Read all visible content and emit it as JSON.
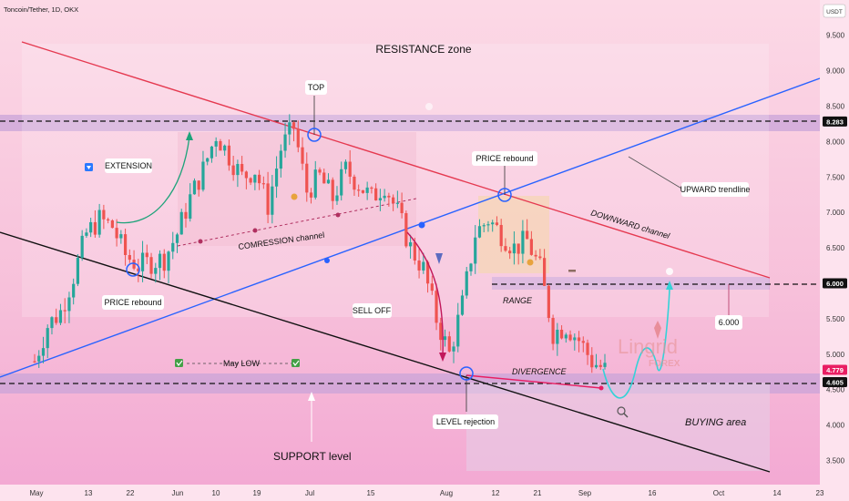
{
  "header": {
    "title": "Toncoin/Tether, 1D, OKX"
  },
  "currency_badge": "USDT",
  "chart_data": {
    "type": "candlestick",
    "symbol": "Toncoin/Tether, 1D, OKX",
    "ylim": [
      3.3,
      9.8
    ],
    "y_ticks": [
      "9.500",
      "9.000",
      "8.500",
      "8.000",
      "7.500",
      "7.000",
      "6.500",
      "5.500",
      "5.000",
      "4.500",
      "4.000",
      "3.500"
    ],
    "x_ticks": [
      "May",
      "13",
      "22",
      "Jun",
      "10",
      "19",
      "Jul",
      "15",
      "Aug",
      "12",
      "21",
      "Sep",
      "16",
      "Oct",
      "14",
      "23"
    ],
    "price_labels": [
      {
        "text": "8.283",
        "value": 8.283,
        "color": "#111111"
      },
      {
        "text": "6.000",
        "value": 6.0,
        "color": "#111111"
      },
      {
        "text": "4.779",
        "value": 4.779,
        "color": "#e91e63"
      },
      {
        "text": "4.605",
        "value": 4.605,
        "color": "#111111"
      }
    ],
    "candles_close_path": [
      4.9,
      5.4,
      5.6,
      6.1,
      6.7,
      6.9,
      6.8,
      6.4,
      6.25,
      6.3,
      6.35,
      6.7,
      7.2,
      7.6,
      8.1,
      7.8,
      7.5,
      7.6,
      7.1,
      7.9,
      8.2,
      7.3,
      7.5,
      7.2,
      7.6,
      7.4,
      7.2,
      7.4,
      7.0,
      6.5,
      6.2,
      5.5,
      5.0,
      5.7,
      6.7,
      6.9,
      6.7,
      6.5,
      6.6,
      6.2,
      5.3,
      5.4,
      5.2,
      4.9,
      4.78
    ],
    "annotations": [
      {
        "text": "RESISTANCE zone"
      },
      {
        "text": "TOP"
      },
      {
        "text": "EXTENSION"
      },
      {
        "text": "PRICE rebound"
      },
      {
        "text": "PRICE rebound"
      },
      {
        "text": "COMRESSION channel"
      },
      {
        "text": "UPWARD trendline"
      },
      {
        "text": "DOWNWARD channel"
      },
      {
        "text": "SELL OFF"
      },
      {
        "text": "RANGE"
      },
      {
        "text": "6.000"
      },
      {
        "text": "May LOW"
      },
      {
        "text": "DIVERGENCE"
      },
      {
        "text": "LEVEL rejection"
      },
      {
        "text": "BUYING area"
      },
      {
        "text": "SUPPORT level"
      }
    ],
    "watermark": "Lingrid FOREX",
    "colors": {
      "bull": "#26a69a",
      "bear": "#ef5350",
      "resistance_line": "#e53950",
      "upward_trendline": "#2962ff",
      "support_line": "#111111",
      "zone": "#c9a4d8"
    }
  }
}
